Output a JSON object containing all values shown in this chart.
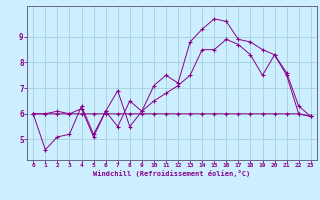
{
  "xlabel": "Windchill (Refroidissement éolien,°C)",
  "ylabel": "",
  "bg_color": "#cceeff",
  "grid_color": "#99cccc",
  "line_color": "#880088",
  "spine_color": "#666688",
  "x_ticks": [
    0,
    1,
    2,
    3,
    4,
    5,
    6,
    7,
    8,
    9,
    10,
    11,
    12,
    13,
    14,
    15,
    16,
    17,
    18,
    19,
    20,
    21,
    22,
    23
  ],
  "y_ticks": [
    5,
    6,
    7,
    8,
    9
  ],
  "ylim": [
    4.2,
    10.2
  ],
  "xlim": [
    -0.5,
    23.5
  ],
  "line1_x": [
    0,
    1,
    2,
    3,
    4,
    5,
    6,
    7,
    8,
    9,
    10,
    11,
    12,
    13,
    14,
    15,
    16,
    17,
    18,
    19,
    20,
    21,
    22,
    23
  ],
  "line1_y": [
    6.0,
    6.0,
    6.0,
    6.0,
    6.0,
    6.0,
    6.0,
    6.0,
    6.0,
    6.0,
    6.0,
    6.0,
    6.0,
    6.0,
    6.0,
    6.0,
    6.0,
    6.0,
    6.0,
    6.0,
    6.0,
    6.0,
    6.0,
    5.9
  ],
  "line2_x": [
    0,
    1,
    2,
    3,
    4,
    5,
    6,
    7,
    8,
    9,
    10,
    11,
    12,
    13,
    14,
    15,
    16,
    17,
    18,
    19,
    20,
    21,
    22,
    23
  ],
  "line2_y": [
    6.0,
    6.0,
    6.1,
    6.0,
    6.2,
    5.1,
    6.1,
    5.5,
    6.5,
    6.1,
    6.5,
    6.8,
    7.1,
    7.5,
    8.5,
    8.5,
    8.9,
    8.7,
    8.3,
    7.5,
    8.3,
    7.5,
    6.0,
    5.9
  ],
  "line3_x": [
    0,
    1,
    2,
    3,
    4,
    5,
    6,
    7,
    8,
    9,
    10,
    11,
    12,
    13,
    14,
    15,
    16,
    17,
    18,
    19,
    20,
    21,
    22,
    23
  ],
  "line3_y": [
    6.0,
    4.6,
    5.1,
    5.2,
    6.3,
    5.2,
    6.1,
    6.9,
    5.5,
    6.1,
    7.1,
    7.5,
    7.2,
    8.8,
    9.3,
    9.7,
    9.6,
    8.9,
    8.8,
    8.5,
    8.3,
    7.6,
    6.3,
    5.9
  ]
}
